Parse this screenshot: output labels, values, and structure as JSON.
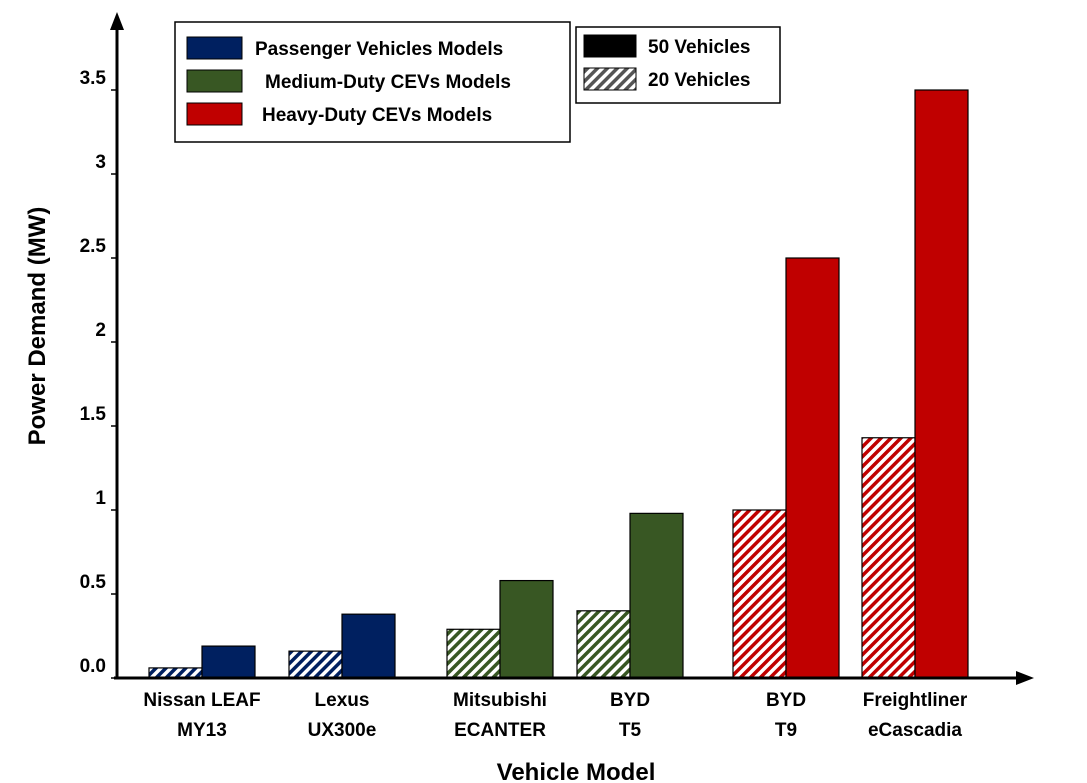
{
  "chart_data": {
    "type": "bar",
    "title": "",
    "xlabel": "Vehicle Model",
    "ylabel": "Power Demand (MW)",
    "ylim": [
      0,
      3.7
    ],
    "yticks": [
      "0.0",
      "0.5",
      "1",
      "1.5",
      "2",
      "2.5",
      "3",
      "3.5"
    ],
    "ytick_values": [
      0,
      0.5,
      1,
      1.5,
      2,
      2.5,
      3,
      3.5
    ],
    "categories": [
      [
        "Nissan LEAF",
        "MY13"
      ],
      [
        "Lexus",
        "UX300e"
      ],
      [
        "Mitsubishi",
        "ECANTER"
      ],
      [
        "BYD",
        "T5"
      ],
      [
        "BYD",
        "T9"
      ],
      [
        "Freightliner",
        "eCascadia"
      ]
    ],
    "category_groups": [
      "passenger",
      "passenger",
      "medium",
      "medium",
      "heavy",
      "heavy"
    ],
    "series": [
      {
        "name": "20 Vehicles",
        "style": "hatched",
        "values": [
          0.06,
          0.16,
          0.29,
          0.4,
          1.0,
          1.43
        ]
      },
      {
        "name": "50 Vehicles",
        "style": "solid",
        "values": [
          0.19,
          0.38,
          0.58,
          0.98,
          2.5,
          3.5
        ]
      }
    ],
    "group_legend": [
      {
        "key": "passenger",
        "label": "Passenger Vehicles Models",
        "color": "#002060"
      },
      {
        "key": "medium",
        "label": "Medium-Duty CEVs Models",
        "color": "#385723"
      },
      {
        "key": "heavy",
        "label": "Heavy-Duty CEVs Models",
        "color": "#c00000"
      }
    ],
    "series_legend": [
      {
        "label": "50 Vehicles",
        "style": "solid"
      },
      {
        "label": "20 Vehicles",
        "style": "hatched"
      }
    ],
    "grid": false,
    "legend_placement": "top"
  }
}
